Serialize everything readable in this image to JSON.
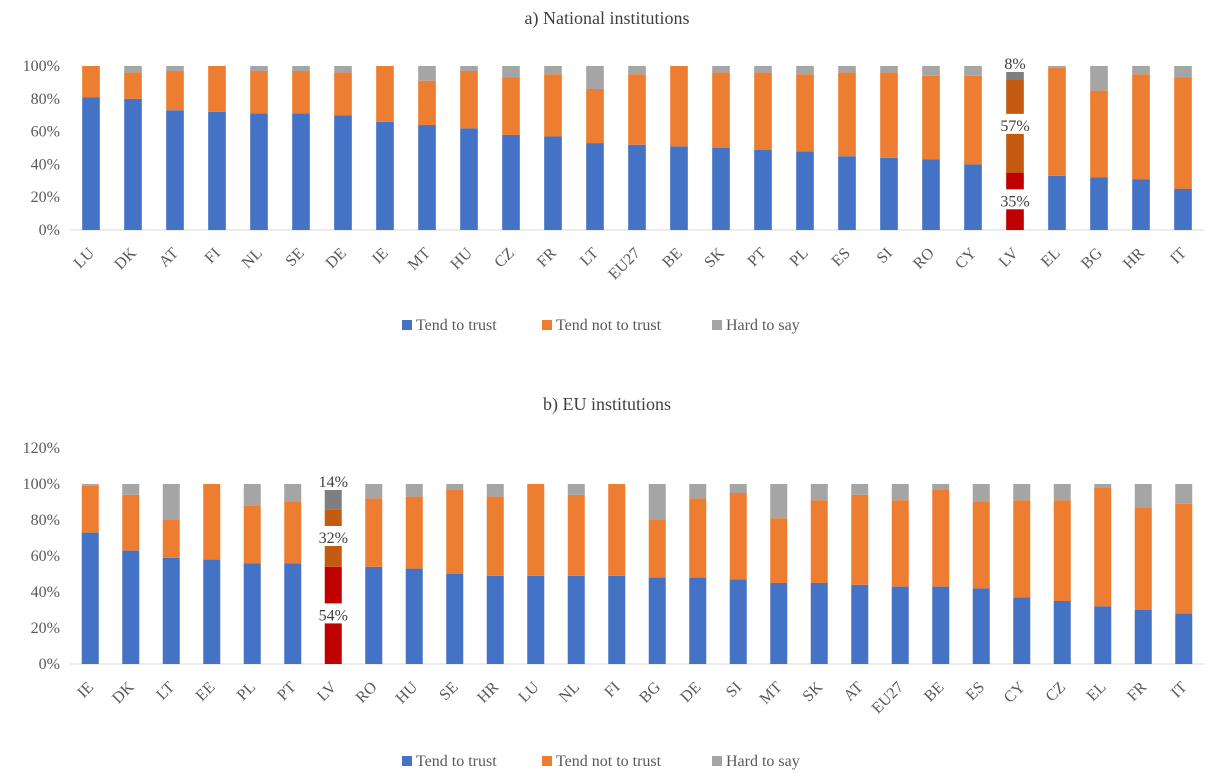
{
  "colors": {
    "tend_to_trust": "#4472C4",
    "tend_not_to_trust": "#ED7D31",
    "hard_to_say": "#A5A5A5",
    "highlight_trust": "#C00000",
    "highlight_not_trust": "#C55A11",
    "highlight_hard": "#7F7F7F"
  },
  "legend": [
    "Tend to trust",
    "Tend not to trust",
    "Hard to say"
  ],
  "chart_data": [
    {
      "type": "bar",
      "stacked": true,
      "title": "a) National institutions",
      "categories": [
        "LU",
        "DK",
        "AT",
        "FI",
        "NL",
        "SE",
        "DE",
        "IE",
        "MT",
        "HU",
        "CZ",
        "FR",
        "LT",
        "EU27",
        "BE",
        "SK",
        "PT",
        "PL",
        "ES",
        "SI",
        "RO",
        "CY",
        "LV",
        "EL",
        "BG",
        "HR",
        "IT"
      ],
      "series": [
        {
          "name": "Tend to trust",
          "values": [
            81,
            80,
            73,
            72,
            71,
            71,
            70,
            66,
            64,
            62,
            58,
            57,
            53,
            52,
            51,
            50,
            49,
            48,
            45,
            44,
            43,
            40,
            35,
            33,
            32,
            31,
            25
          ]
        },
        {
          "name": "Tend not to trust",
          "values": [
            19,
            16,
            24,
            28,
            26,
            26,
            26,
            34,
            27,
            35,
            35,
            38,
            33,
            43,
            49,
            46,
            47,
            47,
            51,
            52,
            51,
            54,
            57,
            66,
            53,
            64,
            68
          ]
        },
        {
          "name": "Hard to say",
          "values": [
            0,
            4,
            3,
            0,
            3,
            3,
            4,
            0,
            9,
            3,
            7,
            5,
            14,
            5,
            0,
            4,
            4,
            5,
            4,
            4,
            6,
            6,
            8,
            1,
            15,
            5,
            7
          ]
        }
      ],
      "yticks": [
        "0%",
        "20%",
        "40%",
        "60%",
        "80%",
        "100%"
      ],
      "ylim": [
        0,
        100
      ],
      "highlight": {
        "category": "LV",
        "labels": [
          "35%",
          "57%",
          "8%"
        ]
      },
      "legend_position": "bottom"
    },
    {
      "type": "bar",
      "stacked": true,
      "title": "b) EU institutions",
      "categories": [
        "IE",
        "DK",
        "LT",
        "EE",
        "PL",
        "PT",
        "LV",
        "RO",
        "HU",
        "SE",
        "HR",
        "LU",
        "NL",
        "FI",
        "BG",
        "DE",
        "SI",
        "MT",
        "SK",
        "AT",
        "EU27",
        "BE",
        "ES",
        "CY",
        "CZ",
        "EL",
        "FR",
        "IT"
      ],
      "series": [
        {
          "name": "Tend to trust",
          "values": [
            73,
            63,
            59,
            58,
            56,
            56,
            54,
            54,
            53,
            50,
            49,
            49,
            49,
            49,
            48,
            48,
            47,
            45,
            45,
            44,
            43,
            43,
            42,
            37,
            35,
            32,
            30,
            28
          ]
        },
        {
          "name": "Tend not to trust",
          "values": [
            26,
            31,
            21,
            42,
            32,
            34,
            32,
            38,
            40,
            47,
            44,
            51,
            45,
            51,
            32,
            44,
            48,
            36,
            46,
            50,
            48,
            54,
            48,
            54,
            56,
            66,
            57,
            61
          ]
        },
        {
          "name": "Hard to say",
          "values": [
            1,
            6,
            20,
            0,
            12,
            10,
            14,
            8,
            7,
            3,
            7,
            0,
            6,
            0,
            20,
            8,
            5,
            19,
            9,
            6,
            9,
            3,
            10,
            9,
            9,
            2,
            13,
            11
          ]
        }
      ],
      "yticks": [
        "0%",
        "20%",
        "40%",
        "60%",
        "80%",
        "100%",
        "120%"
      ],
      "ylim": [
        0,
        120
      ],
      "highlight": {
        "category": "LV",
        "labels": [
          "54%",
          "32%",
          "14%"
        ]
      },
      "legend_position": "bottom"
    }
  ]
}
